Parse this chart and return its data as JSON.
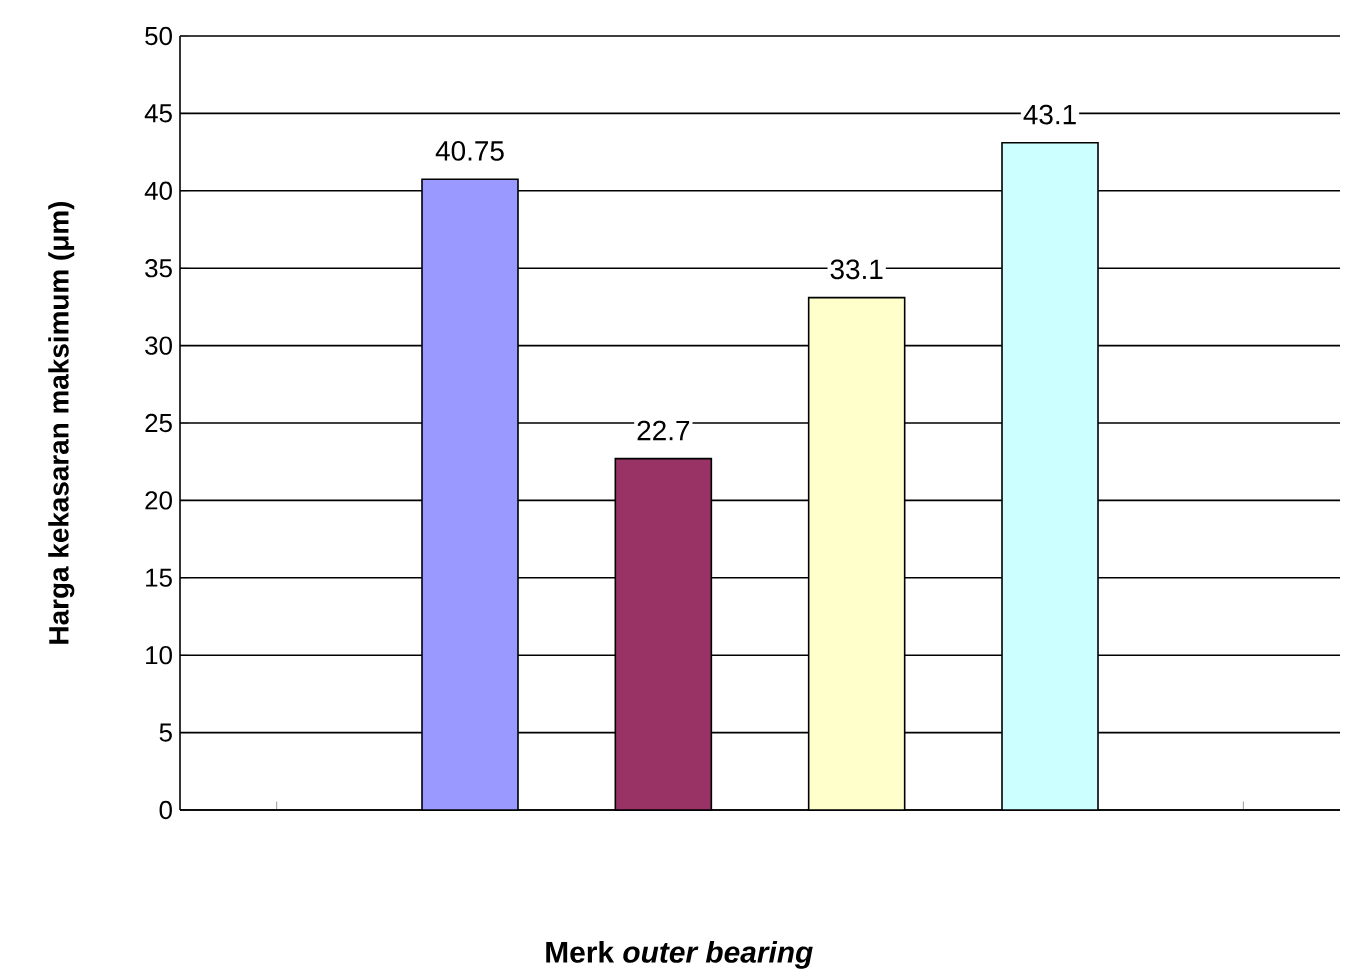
{
  "chart_data": {
    "type": "bar",
    "ylabel": "Harga kekasaran maksimum (μm)",
    "xlabel": "Merk *outer bearing*",
    "categories": [
      null,
      null,
      null,
      null,
      null,
      null
    ],
    "values": [
      null,
      40.75,
      22.7,
      33.1,
      43.1,
      null
    ],
    "colors": [
      "#9999ff",
      "#9999ff",
      "#993366",
      "#ffffcc",
      "#ccffff",
      "#ccffff"
    ],
    "ylim": [
      0,
      50
    ],
    "yticks": [
      0,
      5,
      10,
      15,
      20,
      25,
      30,
      35,
      40,
      45,
      50
    ],
    "grid": "y",
    "data_labels": true,
    "tick_labels": "y"
  }
}
